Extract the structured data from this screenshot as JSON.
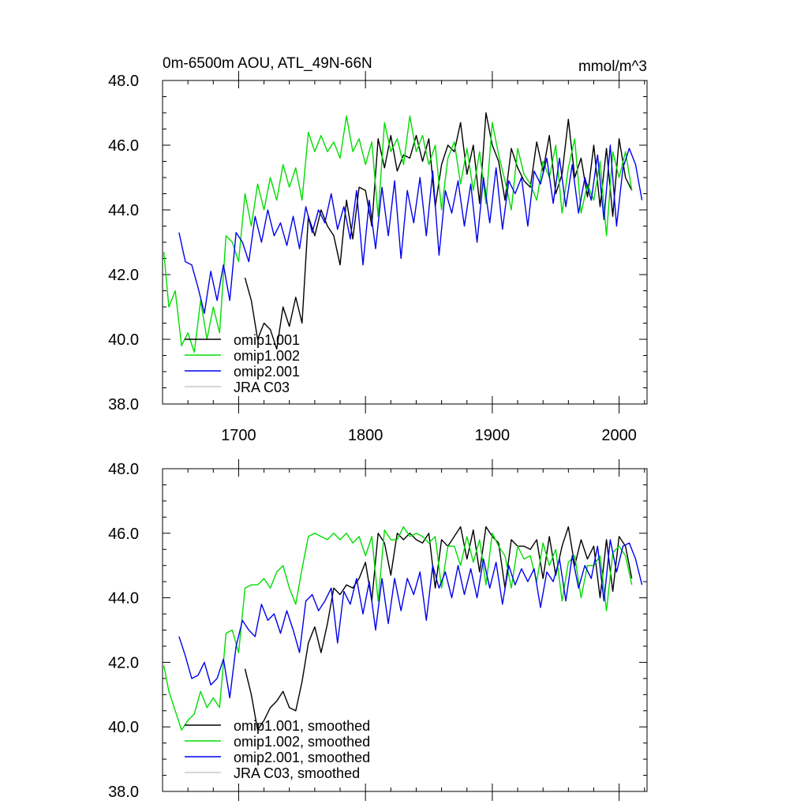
{
  "chart_data": [
    {
      "type": "line",
      "title": "0m-6500m AOU, ATL_49N-66N",
      "units": "mmol/m^3",
      "xlim": [
        1640,
        2022
      ],
      "ylim": [
        38.0,
        48.0
      ],
      "y_ticks": [
        "38.0",
        "40.0",
        "42.0",
        "44.0",
        "46.0",
        "48.0"
      ],
      "x_ticks": [
        "1700",
        "1800",
        "1900",
        "2000"
      ],
      "legend_position": "bottom-left",
      "series": [
        {
          "name": "omip1.001",
          "color": "#000000",
          "x": [
            1705,
            1710,
            1715,
            1720,
            1725,
            1730,
            1735,
            1740,
            1745,
            1750,
            1755,
            1760,
            1765,
            1770,
            1775,
            1780,
            1785,
            1790,
            1795,
            1800,
            1805,
            1810,
            1815,
            1820,
            1825,
            1830,
            1835,
            1840,
            1845,
            1850,
            1855,
            1860,
            1865,
            1870,
            1875,
            1880,
            1885,
            1890,
            1895,
            1900,
            1905,
            1910,
            1915,
            1920,
            1925,
            1930,
            1935,
            1940,
            1945,
            1950,
            1955,
            1960,
            1965,
            1970,
            1975,
            1980,
            1985,
            1990,
            1995,
            2000,
            2005,
            2010
          ],
          "values": [
            41.9,
            41.2,
            40.0,
            40.5,
            40.3,
            39.7,
            41.0,
            40.4,
            41.3,
            40.5,
            43.8,
            43.2,
            44.0,
            43.5,
            43.2,
            42.3,
            44.3,
            43.1,
            44.7,
            44.6,
            43.5,
            46.2,
            45.3,
            46.3,
            45.2,
            45.7,
            45.6,
            46.3,
            45.5,
            46.2,
            44.1,
            45.4,
            46.0,
            45.8,
            46.7,
            45.1,
            46.0,
            44.2,
            47.0,
            46.0,
            45.5,
            44.3,
            45.9,
            45.3,
            44.9,
            44.7,
            46.1,
            45.2,
            46.3,
            44.5,
            45.1,
            46.8,
            45.0,
            45.6,
            44.4,
            46.0,
            44.1,
            45.9,
            43.8,
            46.2,
            45.0,
            44.6
          ]
        },
        {
          "name": "omip1.002",
          "color": "#00dd00",
          "x": [
            1641,
            1645,
            1650,
            1655,
            1660,
            1665,
            1670,
            1675,
            1680,
            1685,
            1690,
            1695,
            1700,
            1705,
            1710,
            1715,
            1720,
            1725,
            1730,
            1735,
            1740,
            1745,
            1750,
            1755,
            1760,
            1765,
            1770,
            1775,
            1780,
            1785,
            1790,
            1795,
            1800,
            1805,
            1810,
            1815,
            1820,
            1825,
            1830,
            1835,
            1840,
            1845,
            1850,
            1855,
            1860,
            1865,
            1870,
            1875,
            1880,
            1885,
            1890,
            1895,
            1900,
            1905,
            1910,
            1915,
            1920,
            1925,
            1930,
            1935,
            1940,
            1945,
            1950,
            1955,
            1960,
            1965,
            1970,
            1975,
            1980,
            1985,
            1990,
            1995,
            2000,
            2005,
            2010
          ],
          "values": [
            42.7,
            41.0,
            41.5,
            39.8,
            40.2,
            39.6,
            41.2,
            40.0,
            41.0,
            40.2,
            43.2,
            43.0,
            42.4,
            44.5,
            43.5,
            44.8,
            44.0,
            45.0,
            44.3,
            45.4,
            44.7,
            45.3,
            44.3,
            46.4,
            45.8,
            46.3,
            45.8,
            46.1,
            45.6,
            46.9,
            45.8,
            46.2,
            45.4,
            46.1,
            43.8,
            46.7,
            45.8,
            46.2,
            45.4,
            46.9,
            45.8,
            46.3,
            45.4,
            46.0,
            44.0,
            45.6,
            46.1,
            44.8,
            45.9,
            44.6,
            45.8,
            44.2,
            46.7,
            45.7,
            44.9,
            44.0,
            45.9,
            45.1,
            44.8,
            44.3,
            45.5,
            45.0,
            46.0,
            43.9,
            45.3,
            46.2,
            43.9,
            44.8,
            44.3,
            45.5,
            43.2,
            45.8,
            45.0,
            45.8,
            44.6
          ]
        },
        {
          "name": "omip2.001",
          "color": "#0000ee",
          "x": [
            1653,
            1658,
            1663,
            1668,
            1673,
            1678,
            1683,
            1688,
            1693,
            1698,
            1703,
            1708,
            1713,
            1718,
            1723,
            1728,
            1733,
            1738,
            1743,
            1748,
            1753,
            1758,
            1763,
            1768,
            1773,
            1778,
            1783,
            1788,
            1793,
            1798,
            1803,
            1808,
            1813,
            1818,
            1823,
            1828,
            1833,
            1838,
            1843,
            1848,
            1853,
            1858,
            1863,
            1868,
            1873,
            1878,
            1883,
            1888,
            1893,
            1898,
            1903,
            1908,
            1913,
            1918,
            1923,
            1928,
            1933,
            1938,
            1943,
            1948,
            1953,
            1958,
            1963,
            1968,
            1973,
            1978,
            1983,
            1988,
            1993,
            1998,
            2003,
            2008,
            2013,
            2018
          ],
          "values": [
            43.3,
            42.4,
            42.3,
            41.6,
            40.8,
            42.1,
            41.2,
            42.3,
            41.2,
            43.3,
            43.0,
            42.4,
            43.8,
            43.0,
            44.0,
            43.2,
            43.6,
            42.9,
            43.8,
            42.8,
            44.1,
            43.3,
            44.0,
            43.6,
            44.5,
            43.4,
            44.1,
            43.1,
            44.6,
            42.3,
            44.3,
            42.8,
            44.7,
            43.2,
            44.9,
            42.5,
            44.6,
            43.6,
            45.0,
            43.2,
            45.2,
            42.6,
            44.6,
            43.9,
            44.9,
            43.5,
            44.8,
            43.0,
            45.0,
            43.6,
            45.3,
            43.4,
            44.9,
            44.5,
            45.0,
            43.5,
            45.2,
            44.8,
            45.6,
            44.2,
            45.6,
            44.1,
            45.4,
            43.9,
            45.0,
            44.3,
            45.7,
            43.7,
            46.0,
            43.5,
            45.3,
            45.9,
            45.4,
            44.3
          ]
        },
        {
          "name": "JRA C03",
          "color": "#c8c8c8",
          "x": [],
          "values": []
        }
      ]
    },
    {
      "type": "line",
      "title": "",
      "units": "",
      "xlim": [
        1640,
        2022
      ],
      "ylim": [
        38.0,
        48.0
      ],
      "y_ticks": [
        "38.0",
        "40.0",
        "42.0",
        "44.0",
        "46.0",
        "48.0"
      ],
      "x_ticks": [],
      "legend_position": "bottom-left",
      "series": [
        {
          "name": "omip1.001, smoothed",
          "color": "#000000",
          "x": [
            1705,
            1710,
            1715,
            1720,
            1725,
            1730,
            1735,
            1740,
            1745,
            1750,
            1755,
            1760,
            1765,
            1770,
            1775,
            1780,
            1785,
            1790,
            1795,
            1800,
            1805,
            1810,
            1815,
            1820,
            1825,
            1830,
            1835,
            1840,
            1845,
            1850,
            1855,
            1860,
            1865,
            1870,
            1875,
            1880,
            1885,
            1890,
            1895,
            1900,
            1905,
            1910,
            1915,
            1920,
            1925,
            1930,
            1935,
            1940,
            1945,
            1950,
            1955,
            1960,
            1965,
            1970,
            1975,
            1980,
            1985,
            1990,
            1995,
            2000,
            2005,
            2010
          ],
          "values": [
            41.8,
            41.0,
            39.9,
            40.2,
            40.6,
            40.8,
            41.1,
            40.6,
            40.5,
            41.4,
            42.6,
            43.1,
            42.3,
            43.2,
            44.3,
            44.1,
            44.4,
            44.3,
            44.6,
            45.1,
            43.9,
            46.0,
            45.7,
            44.7,
            46.0,
            45.8,
            46.0,
            45.8,
            45.7,
            46.0,
            44.3,
            45.8,
            45.6,
            45.9,
            46.2,
            45.2,
            46.1,
            44.8,
            46.2,
            45.9,
            45.7,
            44.3,
            45.8,
            45.6,
            45.6,
            45.5,
            45.8,
            44.6,
            45.9,
            44.7,
            45.6,
            46.2,
            45.0,
            45.8,
            45.2,
            45.6,
            44.0,
            45.8,
            44.2,
            45.9,
            45.6,
            44.6
          ]
        },
        {
          "name": "omip1.002, smoothed",
          "color": "#00dd00",
          "x": [
            1641,
            1645,
            1650,
            1655,
            1660,
            1665,
            1670,
            1675,
            1680,
            1685,
            1690,
            1695,
            1700,
            1705,
            1710,
            1715,
            1720,
            1725,
            1730,
            1735,
            1740,
            1745,
            1750,
            1755,
            1760,
            1765,
            1770,
            1775,
            1780,
            1785,
            1790,
            1795,
            1800,
            1805,
            1810,
            1815,
            1820,
            1825,
            1830,
            1835,
            1840,
            1845,
            1850,
            1855,
            1860,
            1865,
            1870,
            1875,
            1880,
            1885,
            1890,
            1895,
            1900,
            1905,
            1910,
            1915,
            1920,
            1925,
            1930,
            1935,
            1940,
            1945,
            1950,
            1955,
            1960,
            1965,
            1970,
            1975,
            1980,
            1985,
            1990,
            1995,
            2000,
            2005,
            2010
          ],
          "values": [
            41.9,
            41.1,
            40.5,
            39.9,
            40.2,
            40.4,
            41.1,
            40.6,
            40.9,
            40.6,
            42.9,
            43.0,
            42.3,
            44.3,
            44.4,
            44.4,
            44.6,
            44.3,
            44.8,
            45.0,
            44.3,
            43.8,
            44.9,
            45.9,
            46.0,
            45.9,
            45.8,
            46.0,
            45.8,
            46.0,
            45.7,
            45.9,
            45.3,
            45.9,
            43.9,
            46.1,
            45.8,
            45.8,
            46.2,
            45.9,
            46.0,
            45.9,
            45.7,
            45.9,
            44.3,
            45.6,
            45.6,
            45.0,
            45.9,
            45.1,
            45.8,
            44.4,
            46.0,
            45.6,
            45.3,
            44.3,
            45.6,
            45.2,
            45.3,
            44.5,
            45.7,
            45.0,
            45.5,
            43.9,
            45.1,
            45.3,
            44.0,
            45.0,
            45.0,
            45.3,
            43.6,
            45.4,
            45.6,
            45.3,
            44.4
          ]
        },
        {
          "name": "omip2.001, smoothed",
          "color": "#0000ee",
          "x": [
            1653,
            1658,
            1663,
            1668,
            1673,
            1678,
            1683,
            1688,
            1693,
            1698,
            1703,
            1708,
            1713,
            1718,
            1723,
            1728,
            1733,
            1738,
            1743,
            1748,
            1753,
            1758,
            1763,
            1768,
            1773,
            1778,
            1783,
            1788,
            1793,
            1798,
            1803,
            1808,
            1813,
            1818,
            1823,
            1828,
            1833,
            1838,
            1843,
            1848,
            1853,
            1858,
            1863,
            1868,
            1873,
            1878,
            1883,
            1888,
            1893,
            1898,
            1903,
            1908,
            1913,
            1918,
            1923,
            1928,
            1933,
            1938,
            1943,
            1948,
            1953,
            1958,
            1963,
            1968,
            1973,
            1978,
            1983,
            1988,
            1993,
            1998,
            2003,
            2008,
            2013,
            2018
          ],
          "values": [
            42.8,
            42.2,
            41.5,
            41.6,
            42.0,
            41.3,
            41.5,
            42.1,
            40.9,
            42.5,
            43.3,
            43.0,
            42.8,
            43.8,
            43.3,
            43.5,
            42.9,
            43.6,
            43.0,
            42.3,
            43.9,
            44.1,
            43.6,
            43.9,
            44.3,
            42.6,
            44.2,
            43.8,
            44.6,
            43.5,
            44.5,
            43.0,
            44.6,
            43.2,
            44.6,
            43.6,
            44.6,
            44.1,
            44.8,
            43.3,
            45.0,
            44.3,
            44.8,
            44.0,
            45.0,
            44.1,
            44.9,
            44.0,
            45.2,
            44.3,
            45.1,
            43.8,
            45.0,
            44.4,
            44.9,
            44.5,
            44.9,
            43.7,
            44.8,
            44.5,
            45.2,
            43.9,
            45.3,
            44.3,
            45.0,
            44.6,
            45.6,
            43.9,
            45.8,
            44.8,
            45.6,
            45.7,
            45.2,
            44.4
          ]
        },
        {
          "name": "JRA C03, smoothed",
          "color": "#c8c8c8",
          "x": [],
          "values": []
        }
      ]
    }
  ]
}
